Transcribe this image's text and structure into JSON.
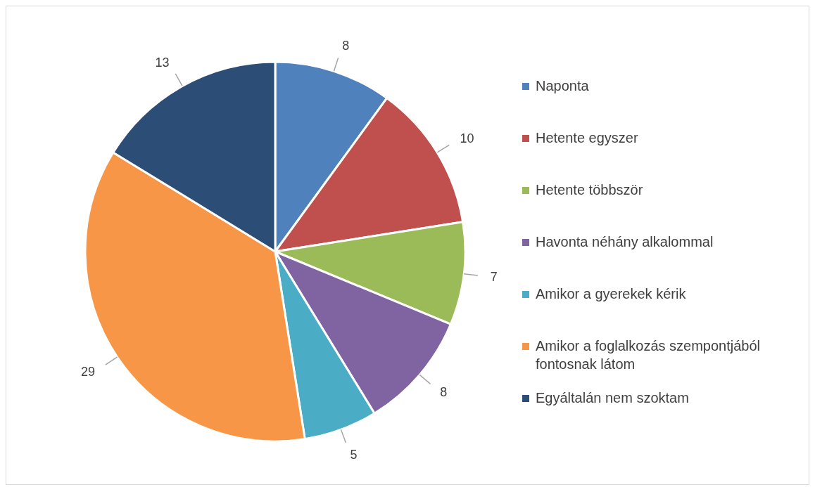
{
  "chart_data": {
    "type": "pie",
    "categories": [
      "Naponta",
      "Hetente egyszer",
      "Hetente többször",
      "Havonta néhány alkalommal",
      "Amikor a gyerekek kérik",
      "Amikor a foglalkozás szempontjából fontosnak látom",
      "Egyáltalán nem szoktam"
    ],
    "values": [
      8,
      10,
      7,
      8,
      5,
      29,
      13
    ],
    "colors": [
      "#4f81bd",
      "#c0504d",
      "#9bbb59",
      "#8064a2",
      "#4bacc6",
      "#f79646",
      "#2c4d75"
    ],
    "data_labels": true,
    "legend": "right"
  }
}
